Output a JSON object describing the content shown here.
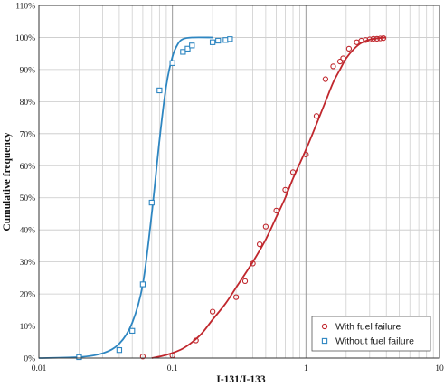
{
  "chart_data": {
    "type": "scatter",
    "xlabel": "I-131/I-133",
    "ylabel": "Cumulative  frequency",
    "x_scale": "log",
    "xlim": [
      0.01,
      10
    ],
    "ylim": [
      0,
      110
    ],
    "x_ticks": [
      0.01,
      0.1,
      1,
      10
    ],
    "x_tick_labels": [
      "0.01",
      "0.1",
      "1",
      "10"
    ],
    "y_ticks": [
      0,
      10,
      20,
      30,
      40,
      50,
      60,
      70,
      80,
      90,
      100,
      110
    ],
    "y_tick_labels": [
      "0%",
      "10%",
      "20%",
      "30%",
      "40%",
      "50%",
      "60%",
      "70%",
      "80%",
      "90%",
      "100%",
      "110%"
    ],
    "grid": true,
    "legend_position": "bottom-right",
    "series": [
      {
        "name": "With fuel failure",
        "color": "#c0272d",
        "marker": "circle",
        "points": [
          [
            0.06,
            0.5
          ],
          [
            0.1,
            0.8
          ],
          [
            0.15,
            5.5
          ],
          [
            0.2,
            14.5
          ],
          [
            0.3,
            19
          ],
          [
            0.35,
            24
          ],
          [
            0.4,
            29.5
          ],
          [
            0.45,
            35.5
          ],
          [
            0.5,
            41
          ],
          [
            0.6,
            46
          ],
          [
            0.7,
            52.5
          ],
          [
            0.8,
            58
          ],
          [
            1.0,
            63.5
          ],
          [
            1.2,
            75.5
          ],
          [
            1.4,
            87
          ],
          [
            1.6,
            91
          ],
          [
            1.8,
            92.5
          ],
          [
            1.9,
            93.5
          ],
          [
            2.1,
            96.5
          ],
          [
            2.4,
            98.5
          ],
          [
            2.6,
            99
          ],
          [
            2.8,
            99.2
          ],
          [
            3.0,
            99.4
          ],
          [
            3.2,
            99.6
          ],
          [
            3.4,
            99.6
          ],
          [
            3.6,
            99.7
          ],
          [
            3.8,
            99.8
          ]
        ],
        "curve": [
          [
            0.07,
            0
          ],
          [
            0.09,
            1
          ],
          [
            0.12,
            3
          ],
          [
            0.16,
            7
          ],
          [
            0.2,
            12
          ],
          [
            0.25,
            17
          ],
          [
            0.3,
            22
          ],
          [
            0.4,
            30
          ],
          [
            0.5,
            37
          ],
          [
            0.6,
            44
          ],
          [
            0.7,
            50
          ],
          [
            0.8,
            56
          ],
          [
            1.0,
            65
          ],
          [
            1.2,
            73
          ],
          [
            1.4,
            80
          ],
          [
            1.6,
            86
          ],
          [
            1.8,
            90
          ],
          [
            2.0,
            93.5
          ],
          [
            2.3,
            96.5
          ],
          [
            2.6,
            98.3
          ],
          [
            3.0,
            99.3
          ],
          [
            3.5,
            99.8
          ],
          [
            4.0,
            100
          ]
        ]
      },
      {
        "name": "Without fuel failure",
        "color": "#2e86c1",
        "marker": "square",
        "points": [
          [
            0.02,
            0.3
          ],
          [
            0.04,
            2.5
          ],
          [
            0.05,
            8.5
          ],
          [
            0.06,
            23
          ],
          [
            0.07,
            48.5
          ],
          [
            0.08,
            83.5
          ],
          [
            0.1,
            92
          ],
          [
            0.12,
            95.5
          ],
          [
            0.13,
            96.5
          ],
          [
            0.14,
            97.5
          ],
          [
            0.2,
            98.5
          ],
          [
            0.22,
            99
          ],
          [
            0.25,
            99.2
          ],
          [
            0.27,
            99.5
          ]
        ],
        "curve": [
          [
            0.01,
            0
          ],
          [
            0.02,
            0.3
          ],
          [
            0.03,
            1.5
          ],
          [
            0.04,
            4.5
          ],
          [
            0.05,
            11
          ],
          [
            0.06,
            23
          ],
          [
            0.07,
            45
          ],
          [
            0.08,
            68
          ],
          [
            0.09,
            85
          ],
          [
            0.1,
            94
          ],
          [
            0.11,
            98
          ],
          [
            0.12,
            99.5
          ],
          [
            0.14,
            100
          ],
          [
            0.2,
            100
          ]
        ]
      }
    ]
  }
}
